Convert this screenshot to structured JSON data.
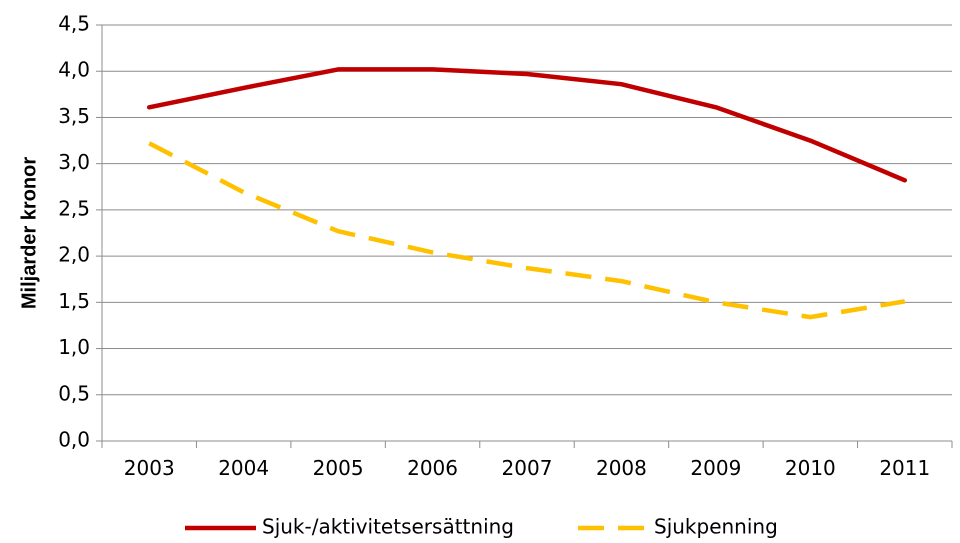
{
  "chart_data": {
    "type": "line",
    "title": "",
    "xlabel": "",
    "ylabel": "Miljarder kronor",
    "categories": [
      "2003",
      "2004",
      "2005",
      "2006",
      "2007",
      "2008",
      "2009",
      "2010",
      "2011"
    ],
    "ylim": [
      0,
      4.5
    ],
    "yticks": [
      "0,0",
      "0,5",
      "1,0",
      "1,5",
      "2,0",
      "2,5",
      "3,0",
      "3,5",
      "4,0",
      "4,5"
    ],
    "grid": true,
    "legend_position": "bottom",
    "series": [
      {
        "name": "Sjuk-/aktivitetsersättning",
        "values": [
          3.61,
          3.82,
          4.02,
          4.02,
          3.97,
          3.86,
          3.61,
          3.25,
          2.82
        ],
        "color": "#C00000",
        "style": "solid"
      },
      {
        "name": "Sjukpenning",
        "values": [
          3.22,
          2.69,
          2.27,
          2.04,
          1.87,
          1.73,
          1.5,
          1.34,
          1.51
        ],
        "color": "#FFC000",
        "style": "dashed"
      }
    ]
  }
}
